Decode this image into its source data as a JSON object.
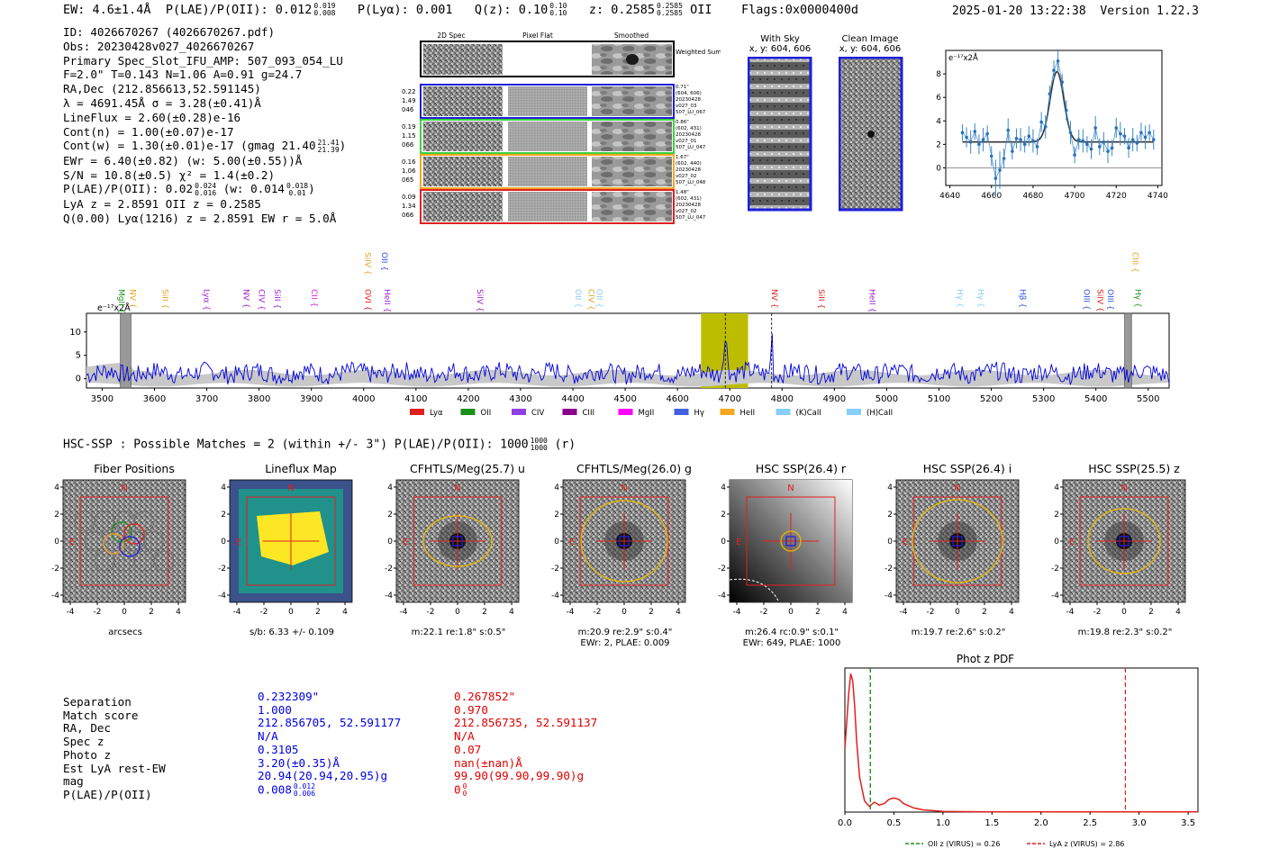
{
  "header": {
    "ew": "EW: 4.6±1.4Å",
    "plae_label": "P(LAE)/P(OII): 0.012",
    "plae_up": "0.019",
    "plae_dn": "0.008",
    "plya": "P(Lyα): 0.001",
    "qz_label": "Q(z): 0.10",
    "qz_up": "0.10",
    "qz_dn": "0.10",
    "z_label": "z: 0.2585",
    "z_up": "0.2585",
    "z_dn": "0.2585",
    "z_line": "OII",
    "flags": "Flags:0x0000400d",
    "datetime": "2025-01-20 13:22:38",
    "version": "Version 1.22.3"
  },
  "meta": {
    "id": "ID: 4026670267 (4026670267.pdf)",
    "obs": "Obs: 20230428v027_4026670267",
    "primary": "Primary Spec_Slot_IFU_AMP: 507_093_054_LU",
    "fit": "F=2.0\"  T=0.143  N=1.06  A=0.91  g=24.7",
    "radec": "RA,Dec (212.856613,52.591145)",
    "lambda": "λ = 4691.45Å  σ = 3.28(±0.41)Å",
    "lineflux": "LineFlux = 2.60(±0.28)e-16",
    "contn": "Cont(n) = 1.00(±0.07)e-17",
    "contw_label": "Cont(w) = 1.30(±0.01)e-17 (gmag 21.40",
    "contw_up": "21.41",
    "contw_dn": "21.39",
    "contw_end": ")",
    "ewr": "EWr = 6.40(±0.82) (w: 5.00(±0.55))Å",
    "sn": "S/N = 10.8(±0.5)  χ² = 1.4(±0.2)",
    "plae_label": "P(LAE)/P(OII): 0.02",
    "plae_up": "0.024",
    "plae_dn": "0.016",
    "plae_w": "(w: 0.014",
    "plae_w_up": "0.018",
    "plae_w_dn": "0.01",
    "plae_end": ")",
    "lya": "LyA z = 2.8591  OII z = 0.2585",
    "q": "Q(0.00) Lyα(1216) z = 2.8591  EW r = 5.0Å"
  },
  "cutouts": {
    "headers": [
      "2D Spec",
      "Pixel Flat",
      "Smoothed"
    ],
    "weighted_label": "Weighted Sum",
    "rows": [
      {
        "left": [
          "0.22",
          "1.49",
          "046"
        ],
        "right": [
          "0.71\"",
          "(604, 606)",
          "20230428",
          "v027_03",
          "507_LU_067"
        ],
        "color": "#1f1fd8"
      },
      {
        "left": [
          "0.19",
          "1.15",
          "066"
        ],
        "right": [
          "0.86\"",
          "(602, 431)",
          "20230428",
          "v027_01",
          "507_LU_047"
        ],
        "color": "#3cd23c"
      },
      {
        "left": [
          "0.16",
          "1.06",
          "065"
        ],
        "right": [
          "1.67\"",
          "(602, 440)",
          "20230428",
          "v027_02",
          "507_LU_048"
        ],
        "color": "#f5a623"
      },
      {
        "left": [
          "0.09",
          "1.34",
          "066"
        ],
        "right": [
          "1.48\"",
          "(602, 431)",
          "20230428",
          "v027_02",
          "507_LU_047"
        ],
        "color": "#e02020"
      }
    ],
    "with_sky_title": "With Sky",
    "with_sky_xy": "x, y: 604, 606",
    "clean_title": "Clean Image",
    "clean_xy": "x, y: 604, 606"
  },
  "zoom_chart": {
    "type": "line",
    "ylabel": "e⁻¹⁷x2Å",
    "xlim": [
      4638,
      4742
    ],
    "ylim": [
      -1.5,
      10
    ],
    "xticks": [
      "4640",
      "4660",
      "4680",
      "4700",
      "4720",
      "4740"
    ],
    "yticks": [
      "0",
      "2",
      "4",
      "6",
      "8"
    ],
    "x": [
      4646,
      4648,
      4650,
      4652,
      4654,
      4656,
      4658,
      4660,
      4662,
      4664,
      4666,
      4668,
      4670,
      4672,
      4674,
      4676,
      4678,
      4680,
      4682,
      4684,
      4686,
      4688,
      4690,
      4692,
      4694,
      4696,
      4698,
      4700,
      4702,
      4704,
      4706,
      4708,
      4710,
      4712,
      4714,
      4716,
      4718,
      4720,
      4722,
      4724,
      4726,
      4728,
      4730,
      4732,
      4734,
      4736,
      4738
    ],
    "y": [
      3.0,
      2.6,
      2.2,
      3.1,
      2.0,
      2.4,
      2.9,
      1.0,
      -0.9,
      -0.2,
      0.8,
      3.2,
      1.4,
      2.5,
      2.4,
      2.0,
      2.7,
      2.3,
      1.8,
      3.9,
      3.5,
      6.3,
      8.3,
      9.1,
      7.3,
      4.9,
      3.0,
      1.1,
      2.4,
      2.3,
      2.0,
      1.6,
      3.4,
      1.8,
      2.2,
      1.4,
      1.7,
      3.4,
      2.9,
      2.7,
      1.7,
      2.4,
      2.1,
      3.0,
      2.6,
      3.0,
      2.4
    ],
    "fit": {
      "continuum": 2.2,
      "center": 4691.5,
      "peak": 8.2,
      "sigma": 3.3
    }
  },
  "main_spectrum": {
    "type": "line",
    "ylabel": "e⁻¹⁷x2Å",
    "xlim": [
      3470,
      5540
    ],
    "ylim": [
      -2,
      14
    ],
    "xticks": [
      "3500",
      "3600",
      "3700",
      "3800",
      "3900",
      "4000",
      "4100",
      "4200",
      "4300",
      "4400",
      "4500",
      "4600",
      "4700",
      "4800",
      "4900",
      "5000",
      "5100",
      "5200",
      "5300",
      "5400",
      "5500"
    ],
    "yticks": [
      "0",
      "5",
      "10"
    ],
    "highlight_band": [
      4645,
      4735
    ],
    "emission_center": 4691.45,
    "second_line": 4780,
    "line_labels": [
      {
        "name": "MgII",
        "x": 3527,
        "color": "#1a8f1a",
        "row": 3
      },
      {
        "name": "NV",
        "x": 3548,
        "color": "#e8a020",
        "row": 3
      },
      {
        "name": "SiII",
        "x": 3610,
        "color": "#e8a020",
        "row": 3
      },
      {
        "name": "Lyα",
        "x": 3690,
        "color": "#a020d0",
        "row": 3
      },
      {
        "name": "NV",
        "x": 3765,
        "color": "#a020d0",
        "row": 3
      },
      {
        "name": "CIV",
        "x": 3795,
        "color": "#a020d0",
        "row": 3
      },
      {
        "name": "SiII",
        "x": 3825,
        "color": "#a020d0",
        "row": 3
      },
      {
        "name": "CII",
        "x": 3895,
        "color": "#e020e0",
        "row": 3
      },
      {
        "name": "SiIV",
        "x": 3998,
        "color": "#e8a020",
        "row": 0
      },
      {
        "name": "OII",
        "x": 4030,
        "color": "#3050e0",
        "row": 0
      },
      {
        "name": "OVI",
        "x": 3998,
        "color": "#e02020",
        "row": 3
      },
      {
        "name": "HeII",
        "x": 4035,
        "color": "#a020d0",
        "row": 3
      },
      {
        "name": "SiIV",
        "x": 4212,
        "color": "#a020d0",
        "row": 3
      },
      {
        "name": "OII",
        "x": 4400,
        "color": "#87cefa",
        "row": 3
      },
      {
        "name": "CIV",
        "x": 4425,
        "color": "#e8a020",
        "row": 3
      },
      {
        "name": "OII",
        "x": 4440,
        "color": "#87cefa",
        "row": 3
      },
      {
        "name": "NV",
        "x": 4775,
        "color": "#e02020",
        "row": 3
      },
      {
        "name": "SiII",
        "x": 4865,
        "color": "#e02020",
        "row": 3
      },
      {
        "name": "HeII",
        "x": 4962,
        "color": "#a020d0",
        "row": 3
      },
      {
        "name": "Hγ",
        "x": 5130,
        "color": "#87cefa",
        "row": 3
      },
      {
        "name": "Hγ",
        "x": 5170,
        "color": "#87cefa",
        "row": 3
      },
      {
        "name": "Hβ",
        "x": 5250,
        "color": "#3050e0",
        "row": 3
      },
      {
        "name": "OIII",
        "x": 5372,
        "color": "#3050e0",
        "row": 3
      },
      {
        "name": "SiIV",
        "x": 5398,
        "color": "#e02020",
        "row": 3
      },
      {
        "name": "OIII",
        "x": 5418,
        "color": "#3050e0",
        "row": 3
      },
      {
        "name": "CIII",
        "x": 5465,
        "color": "#e8a020",
        "row": 0
      },
      {
        "name": "Hγ",
        "x": 5470,
        "color": "#1a8f1a",
        "row": 3
      }
    ],
    "legend": [
      {
        "name": "Lyα",
        "color": "#e02020"
      },
      {
        "name": "OII",
        "color": "#1a8f1a"
      },
      {
        "name": "CIV",
        "color": "#9040e0"
      },
      {
        "name": "CIII",
        "color": "#8b008b"
      },
      {
        "name": "MgII",
        "color": "#ff00ff"
      },
      {
        "name": "Hγ",
        "color": "#4060e0"
      },
      {
        "name": "HeII",
        "color": "#f5a623"
      },
      {
        "name": "(K)CaII",
        "color": "#87cefa"
      },
      {
        "name": "(H)CaII",
        "color": "#87cefa"
      }
    ]
  },
  "hsc": {
    "summary": "HSC-SSP : Possible Matches = 2 (within +/- 3\")  P(LAE)/P(OII): 1000",
    "sum_up": "1000",
    "sum_dn": "1000",
    "sum_end": "(r)",
    "panels": [
      {
        "title": "Fiber Positions",
        "foot1": "arcsecs",
        "foot2": ""
      },
      {
        "title": "Lineflux Map",
        "foot1": "s/b: 6.33 +/- 0.109",
        "foot2": ""
      },
      {
        "title": "CFHTLS/Meg(25.7) u",
        "foot1": "m:22.1  re:1.8\"  s:0.5\"",
        "foot2": ""
      },
      {
        "title": "CFHTLS/Meg(26.0) g",
        "foot1": "m:20.9  re:2.9\"  s:0.4\"",
        "foot2": "EWr: 2, PLAE: 0.009"
      },
      {
        "title": "HSC SSP(26.4) r",
        "foot1": "m:26.4 rc:0.9\"  s:0.1\"",
        "foot2": "EWr: 649, PLAE: 1000"
      },
      {
        "title": "HSC SSP(26.4) i",
        "foot1": "m:19.7  re:2.6\"  s:0.2\"",
        "foot2": ""
      },
      {
        "title": "HSC SSP(25.5) z",
        "foot1": "m:19.8  re:2.3\"  s:0.2\"",
        "foot2": ""
      }
    ],
    "axis_ticks": [
      "-4",
      "-2",
      "0",
      "2",
      "4"
    ],
    "n_label": "N",
    "e_label": "E"
  },
  "matches": {
    "labels": [
      "Separation",
      "Match score",
      "RA, Dec",
      "Spec z",
      "Photo z",
      "Est LyA rest-EW",
      "mag",
      "P(LAE)/P(OII)"
    ],
    "blue": [
      "0.232309\"",
      "1.000",
      "212.856705, 52.591177",
      "N/A",
      "0.3105",
      "3.20(±0.35)Å",
      "20.94(20.94,20.95)g",
      "0.008"
    ],
    "blue_plae_up": "0.012",
    "blue_plae_dn": "0.006",
    "red": [
      "0.267852\"",
      "0.970",
      "212.856735, 52.591137",
      "N/A",
      "0.07",
      "nan(±nan)Å",
      "99.90(99.90,99.90)g",
      "0"
    ],
    "red_plae_up": "0",
    "red_plae_dn": "0"
  },
  "photz_chart": {
    "type": "line",
    "title": "Phot z PDF",
    "xlim": [
      0,
      3.6
    ],
    "xticks": [
      "0.0",
      "0.5",
      "1.0",
      "1.5",
      "2.0",
      "2.5",
      "3.0",
      "3.5"
    ],
    "oii_z": 0.26,
    "lya_z": 2.86,
    "legend_oii": "OII z (VIRUS) = 0.26",
    "legend_lya": "LyA z (VIRUS) = 2.86",
    "x": [
      0,
      0.02,
      0.04,
      0.06,
      0.08,
      0.1,
      0.12,
      0.15,
      0.2,
      0.25,
      0.3,
      0.35,
      0.4,
      0.45,
      0.5,
      0.55,
      0.6,
      0.7,
      0.8,
      0.9,
      1.0,
      1.2,
      1.5,
      2.0,
      2.5,
      3.0,
      3.6
    ],
    "y": [
      0.45,
      0.65,
      0.85,
      0.98,
      0.93,
      0.75,
      0.5,
      0.25,
      0.08,
      0.04,
      0.07,
      0.05,
      0.06,
      0.09,
      0.1,
      0.09,
      0.06,
      0.03,
      0.015,
      0.01,
      0.005,
      0.003,
      0.002,
      0.001,
      0.001,
      0.001,
      0.001
    ]
  }
}
